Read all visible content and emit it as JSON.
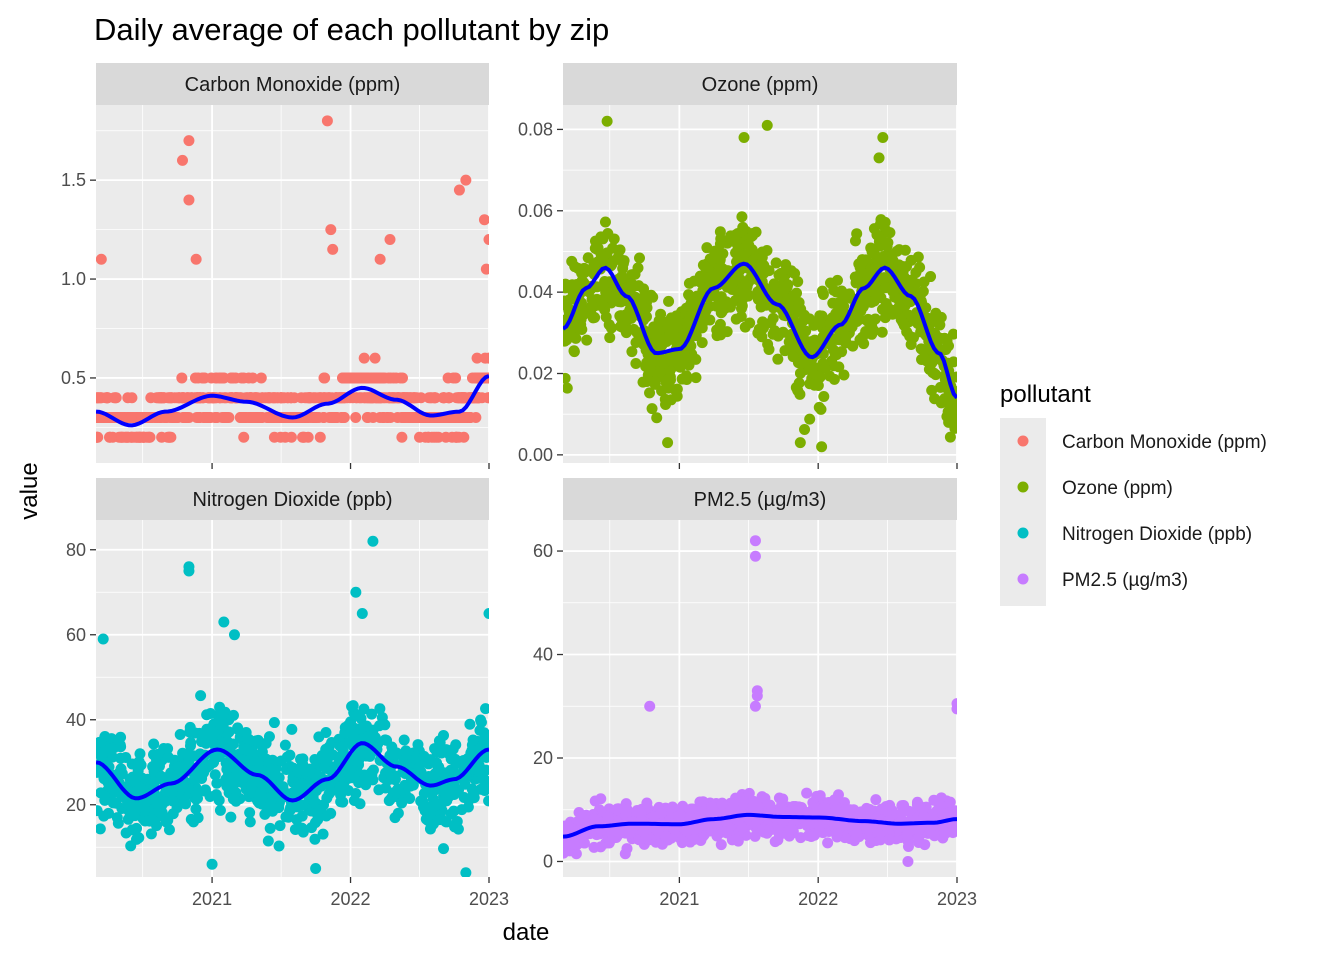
{
  "chart_data": {
    "type": "scatter",
    "title": "Daily average of each pollutant by zip",
    "xlabel": "date",
    "ylabel": "value",
    "x_ticks": [
      "2021",
      "2022",
      "2023"
    ],
    "xlim": [
      "2020-03-01",
      "2023-01-01"
    ],
    "legend": {
      "title": "pollutant",
      "placement": "right",
      "entries": [
        {
          "name": "Carbon Monoxide (ppm)",
          "color": "#F8766D"
        },
        {
          "name": "Ozone (ppm)",
          "color": "#7CAE00"
        },
        {
          "name": "Nitrogen Dioxide (ppb)",
          "color": "#00BFC4"
        },
        {
          "name": "PM2.5 (µg/m3)",
          "color": "#C77CFF"
        }
      ]
    },
    "smooth_color": "#0000FF",
    "grid": true,
    "panels": [
      {
        "name": "Carbon Monoxide (ppm)",
        "color": "#F8766D",
        "ylim": [
          0.07,
          1.88
        ],
        "y_ticks": [
          0.5,
          1.0,
          1.5
        ],
        "y_tick_labels": [
          "0.5",
          "1.0",
          "1.5"
        ],
        "smooth": [
          [
            "2020-03-01",
            0.33
          ],
          [
            "2020-06-01",
            0.26
          ],
          [
            "2020-09-01",
            0.33
          ],
          [
            "2021-01-01",
            0.41
          ],
          [
            "2021-04-01",
            0.38
          ],
          [
            "2021-08-01",
            0.3
          ],
          [
            "2021-11-01",
            0.37
          ],
          [
            "2022-02-01",
            0.45
          ],
          [
            "2022-05-01",
            0.39
          ],
          [
            "2022-08-01",
            0.31
          ],
          [
            "2022-10-15",
            0.33
          ],
          [
            "2023-01-01",
            0.51
          ]
        ],
        "outliers": [
          [
            "2020-03-15",
            1.1
          ],
          [
            "2020-10-15",
            1.6
          ],
          [
            "2020-11-01",
            1.7
          ],
          [
            "2020-11-01",
            1.4
          ],
          [
            "2020-11-20",
            1.1
          ],
          [
            "2021-11-01",
            1.8
          ],
          [
            "2021-11-10",
            1.25
          ],
          [
            "2021-11-15",
            1.15
          ],
          [
            "2022-03-20",
            1.1
          ],
          [
            "2022-04-15",
            1.2
          ],
          [
            "2022-10-15",
            1.45
          ],
          [
            "2022-11-01",
            1.5
          ],
          [
            "2022-12-20",
            1.3
          ],
          [
            "2023-01-01",
            1.2
          ],
          [
            "2022-12-25",
            1.05
          ]
        ]
      },
      {
        "name": "Ozone (ppm)",
        "color": "#7CAE00",
        "ylim": [
          -0.002,
          0.086
        ],
        "y_ticks": [
          0.0,
          0.02,
          0.04,
          0.06,
          0.08
        ],
        "y_tick_labels": [
          "0.00",
          "0.02",
          "0.04",
          "0.06",
          "0.08"
        ],
        "smooth": [
          [
            "2020-03-01",
            0.031
          ],
          [
            "2020-05-01",
            0.041
          ],
          [
            "2020-06-20",
            0.046
          ],
          [
            "2020-08-15",
            0.039
          ],
          [
            "2020-11-01",
            0.025
          ],
          [
            "2021-01-01",
            0.026
          ],
          [
            "2021-04-01",
            0.041
          ],
          [
            "2021-06-20",
            0.047
          ],
          [
            "2021-09-15",
            0.037
          ],
          [
            "2021-12-15",
            0.024
          ],
          [
            "2022-03-01",
            0.032
          ],
          [
            "2022-05-01",
            0.041
          ],
          [
            "2022-06-25",
            0.046
          ],
          [
            "2022-09-01",
            0.039
          ],
          [
            "2022-11-15",
            0.025
          ],
          [
            "2023-01-01",
            0.014
          ]
        ],
        "outliers": [
          [
            "2020-06-25",
            0.082
          ],
          [
            "2021-06-20",
            0.078
          ],
          [
            "2021-08-20",
            0.081
          ],
          [
            "2022-06-20",
            0.078
          ],
          [
            "2022-06-10",
            0.073
          ],
          [
            "2021-11-15",
            0.003
          ],
          [
            "2022-01-10",
            0.002
          ],
          [
            "2020-12-01",
            0.003
          ],
          [
            "2022-12-10",
            0.008
          ]
        ]
      },
      {
        "name": "Nitrogen Dioxide (ppb)",
        "color": "#00BFC4",
        "ylim": [
          3,
          87
        ],
        "y_ticks": [
          20,
          40,
          60,
          80
        ],
        "y_tick_labels": [
          "20",
          "40",
          "60",
          "80"
        ],
        "smooth": [
          [
            "2020-03-01",
            30
          ],
          [
            "2020-06-15",
            21.5
          ],
          [
            "2020-09-15",
            25
          ],
          [
            "2021-01-15",
            33
          ],
          [
            "2021-05-01",
            27
          ],
          [
            "2021-08-01",
            21
          ],
          [
            "2021-11-01",
            26
          ],
          [
            "2022-02-01",
            34.5
          ],
          [
            "2022-05-01",
            29
          ],
          [
            "2022-08-01",
            24.5
          ],
          [
            "2022-10-01",
            26
          ],
          [
            "2023-01-01",
            33
          ]
        ],
        "outliers": [
          [
            "2020-03-20",
            59
          ],
          [
            "2020-11-01",
            76
          ],
          [
            "2020-11-01",
            75
          ],
          [
            "2021-02-01",
            63
          ],
          [
            "2021-03-01",
            60
          ],
          [
            "2022-03-01",
            82
          ],
          [
            "2022-01-15",
            70
          ],
          [
            "2022-02-01",
            65
          ],
          [
            "2021-01-01",
            6
          ],
          [
            "2021-10-01",
            5
          ],
          [
            "2022-11-01",
            4
          ],
          [
            "2023-01-01",
            65
          ]
        ]
      },
      {
        "name": "PM2.5 (µg/m3)",
        "color": "#C77CFF",
        "ylim": [
          -3,
          66
        ],
        "y_ticks": [
          0,
          20,
          40,
          60
        ],
        "y_tick_labels": [
          "0",
          "20",
          "40",
          "60"
        ],
        "smooth": [
          [
            "2020-03-01",
            4.8
          ],
          [
            "2020-06-01",
            6.8
          ],
          [
            "2020-09-01",
            7.3
          ],
          [
            "2021-01-01",
            7.2
          ],
          [
            "2021-04-01",
            8.2
          ],
          [
            "2021-07-01",
            9.0
          ],
          [
            "2021-10-01",
            8.6
          ],
          [
            "2022-01-01",
            8.5
          ],
          [
            "2022-05-01",
            7.8
          ],
          [
            "2022-08-01",
            7.3
          ],
          [
            "2022-11-01",
            7.5
          ],
          [
            "2023-01-01",
            8.2
          ]
        ],
        "outliers": [
          [
            "2021-07-20",
            62
          ],
          [
            "2021-07-20",
            59
          ],
          [
            "2021-07-25",
            33
          ],
          [
            "2021-07-25",
            32
          ],
          [
            "2021-07-20",
            30
          ],
          [
            "2023-01-01",
            30.5
          ],
          [
            "2023-01-01",
            29.5
          ],
          [
            "2020-10-15",
            30
          ],
          [
            "2022-08-25",
            0
          ]
        ]
      }
    ]
  }
}
